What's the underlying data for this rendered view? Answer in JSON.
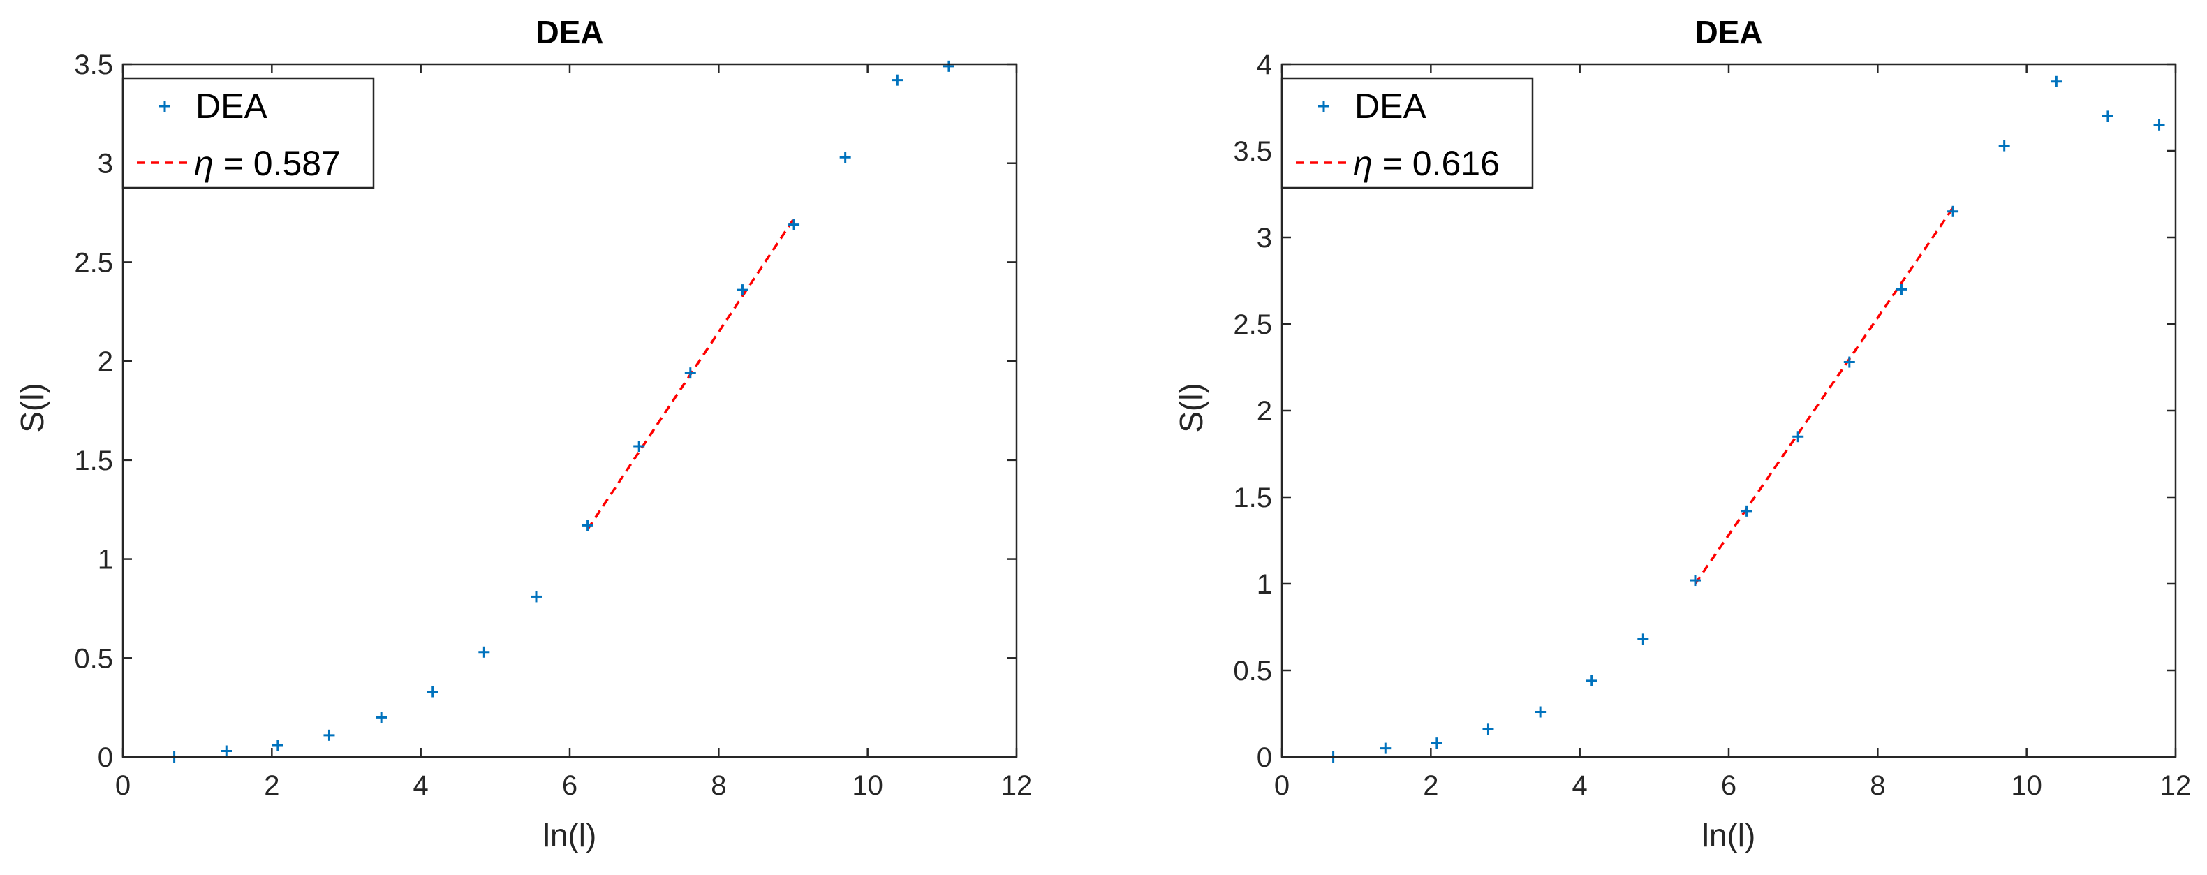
{
  "colors": {
    "marker": "#0072BD",
    "fit_line": "#FF0000",
    "axes": "#262626",
    "background": "#FFFFFF"
  },
  "chart_data": [
    {
      "type": "scatter",
      "title": "DEA",
      "xlabel": "ln(l)",
      "ylabel": "S(l)",
      "xlim": [
        0,
        12
      ],
      "ylim": [
        0,
        3.5
      ],
      "xticks": [
        0,
        2,
        4,
        6,
        8,
        10,
        12
      ],
      "xtick_labels": [
        "0",
        "2",
        "4",
        "6",
        "8",
        "10",
        "12"
      ],
      "yticks": [
        0,
        0.5,
        1,
        1.5,
        2,
        2.5,
        3,
        3.5
      ],
      "ytick_labels": [
        "0",
        "0.5",
        "1",
        "1.5",
        "2",
        "2.5",
        "3",
        "3.5"
      ],
      "grid": false,
      "legend_position": "top-left",
      "legend": [
        {
          "symbol": "+",
          "prefix": "",
          "label": "DEA"
        },
        {
          "symbol": "--",
          "prefix": "η",
          "label": " = 0.587"
        }
      ],
      "series": [
        {
          "name": "DEA",
          "marker": "+",
          "x": [
            0.69,
            1.39,
            2.08,
            2.77,
            3.47,
            4.16,
            4.85,
            5.55,
            6.24,
            6.93,
            7.62,
            8.32,
            9.01,
            9.7,
            10.4,
            11.09
          ],
          "y": [
            0.0,
            0.03,
            0.06,
            0.11,
            0.2,
            0.33,
            0.53,
            0.81,
            1.17,
            1.57,
            1.94,
            2.36,
            2.69,
            3.03,
            3.42,
            3.49
          ]
        },
        {
          "name": "η = 0.587",
          "style": "dashed",
          "x": [
            6.24,
            9.01
          ],
          "y": [
            1.15,
            2.72
          ]
        }
      ]
    },
    {
      "type": "scatter",
      "title": "DEA",
      "xlabel": "ln(l)",
      "ylabel": "S(l)",
      "xlim": [
        0,
        12
      ],
      "ylim": [
        0,
        4
      ],
      "xticks": [
        0,
        2,
        4,
        6,
        8,
        10,
        12
      ],
      "xtick_labels": [
        "0",
        "2",
        "4",
        "6",
        "8",
        "10",
        "12"
      ],
      "yticks": [
        0,
        0.5,
        1,
        1.5,
        2,
        2.5,
        3,
        3.5,
        4
      ],
      "ytick_labels": [
        "0",
        "0.5",
        "1",
        "1.5",
        "2",
        "2.5",
        "3",
        "3.5",
        "4"
      ],
      "grid": false,
      "legend_position": "top-left",
      "legend": [
        {
          "symbol": "+",
          "prefix": "",
          "label": "DEA"
        },
        {
          "symbol": "--",
          "prefix": "η",
          "label": " = 0.616"
        }
      ],
      "series": [
        {
          "name": "DEA",
          "marker": "+",
          "x": [
            0.69,
            1.39,
            2.08,
            2.77,
            3.47,
            4.16,
            4.85,
            5.55,
            6.24,
            6.93,
            7.62,
            8.32,
            9.01,
            9.7,
            10.4,
            11.09,
            11.78
          ],
          "y": [
            0.0,
            0.05,
            0.08,
            0.16,
            0.26,
            0.44,
            0.68,
            1.02,
            1.42,
            1.85,
            2.28,
            2.7,
            3.15,
            3.53,
            3.9,
            3.7,
            3.65
          ]
        },
        {
          "name": "η = 0.616",
          "style": "dashed",
          "x": [
            5.55,
            9.01
          ],
          "y": [
            1.0,
            3.17
          ]
        }
      ]
    }
  ]
}
